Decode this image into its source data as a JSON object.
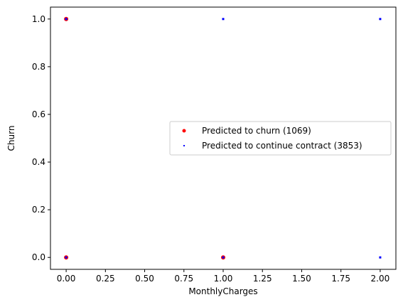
{
  "chart_data": {
    "type": "scatter",
    "title": "",
    "xlabel": "MonthlyCharges",
    "ylabel": "Churn",
    "xlim": [
      -0.1,
      2.1
    ],
    "ylim": [
      -0.05,
      1.05
    ],
    "xticks": [
      "0.00",
      "0.25",
      "0.50",
      "0.75",
      "1.00",
      "1.25",
      "1.50",
      "1.75",
      "2.00"
    ],
    "yticks": [
      "0.0",
      "0.2",
      "0.4",
      "0.6",
      "0.8",
      "1.0"
    ],
    "grid": false,
    "legend_position": "center-right",
    "series": [
      {
        "name": "Predicted to churn (1069)",
        "color": "#ff0000",
        "marker": "circle",
        "points": [
          [
            0,
            1
          ],
          [
            0,
            0
          ],
          [
            1,
            0
          ]
        ]
      },
      {
        "name": "Predicted to continue contract (3853)",
        "color": "#0000ff",
        "marker": "point",
        "points": [
          [
            0,
            1
          ],
          [
            0,
            0
          ],
          [
            1,
            1
          ],
          [
            1,
            0
          ],
          [
            2,
            1
          ],
          [
            2,
            0
          ]
        ]
      }
    ]
  }
}
